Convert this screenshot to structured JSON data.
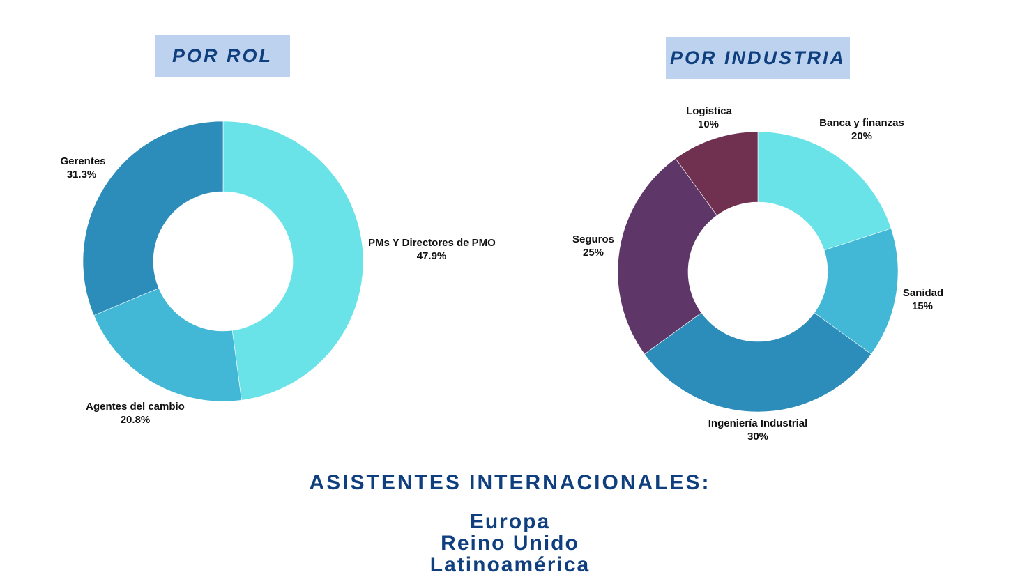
{
  "headers": {
    "rol": "POR ROL",
    "industria": "POR INDUSTRIA"
  },
  "chart_data": [
    {
      "type": "pie",
      "donut": true,
      "title": "POR ROL",
      "categories": [
        "PMs Y Directores de PMO",
        "Agentes del cambio",
        "Gerentes"
      ],
      "values": [
        47.9,
        20.8,
        31.3
      ],
      "value_labels": [
        "47.9%",
        "20.8%",
        "31.3%"
      ],
      "colors": [
        "#69e3e8",
        "#42b8d6",
        "#2c8cba"
      ],
      "start": "12 o'clock, clockwise"
    },
    {
      "type": "pie",
      "donut": true,
      "title": "POR INDUSTRIA",
      "categories": [
        "Banca y finanzas",
        "Sanidad",
        "Ingeniería Industrial",
        "Seguros",
        "Logística"
      ],
      "values": [
        20,
        15,
        30,
        25,
        10
      ],
      "value_labels": [
        "20%",
        "15%",
        "30%",
        "25%",
        "10%"
      ],
      "colors": [
        "#69e3e8",
        "#42b8d6",
        "#2c8cba",
        "#5e3768",
        "#70304f"
      ],
      "start": "12 o'clock, clockwise"
    }
  ],
  "footer": {
    "title": "ASISTENTES INTERNACIONALES:",
    "regions": [
      "Europa",
      "Reino Unido",
      "Latinoamérica"
    ]
  }
}
